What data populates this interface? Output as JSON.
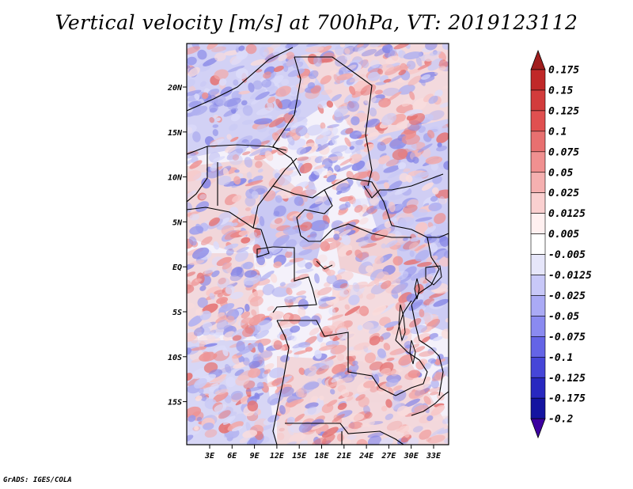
{
  "title": "Vertical velocity [m/s] at 700hPa, VT: 2019123112",
  "footer": "GrADS: IGES/COLA",
  "map": {
    "lon_labels": [
      "3E",
      "6E",
      "9E",
      "12E",
      "15E",
      "18E",
      "21E",
      "24E",
      "27E",
      "30E",
      "33E"
    ],
    "lat_labels": [
      "20N",
      "15N",
      "10N",
      "5N",
      "EQ",
      "5S",
      "10S",
      "15S"
    ]
  },
  "colorbar": {
    "labels": [
      "0.175",
      "0.15",
      "0.125",
      "0.1",
      "0.075",
      "0.05",
      "0.025",
      "0.0125",
      "0.005",
      "-0.005",
      "-0.0125",
      "-0.025",
      "-0.05",
      "-0.075",
      "-0.1",
      "-0.125",
      "-0.175",
      "-0.2"
    ],
    "colors": [
      "#a01e1e",
      "#c02828",
      "#d23c3c",
      "#e05050",
      "#e87070",
      "#f09090",
      "#f5b0b0",
      "#fad0d0",
      "#fff0f0",
      "#ffffff",
      "#e6e6fa",
      "#c8c8f8",
      "#aaaaf5",
      "#8a8af0",
      "#6464e6",
      "#4646d8",
      "#2828c0",
      "#1414a0",
      "#3c00a0"
    ]
  }
}
